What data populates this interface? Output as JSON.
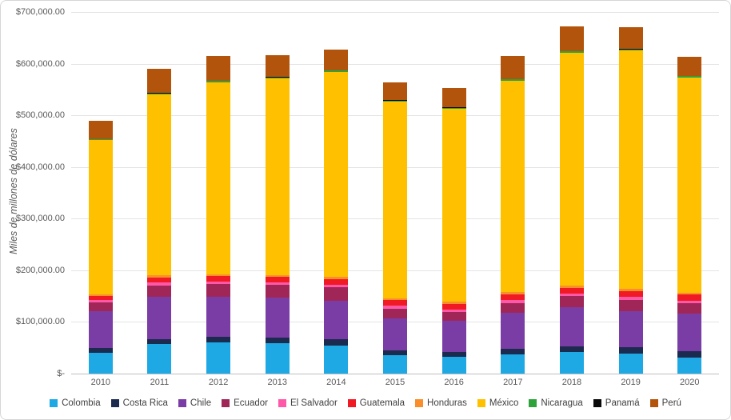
{
  "chart_data": {
    "type": "bar",
    "stacked": true,
    "title": "",
    "xlabel": "",
    "ylabel": "Miles de millones de dólares",
    "ylim": [
      0,
      700000
    ],
    "grid": true,
    "legend_position": "bottom",
    "y_ticks": [
      {
        "value": 700000,
        "label": "$700,000.00"
      },
      {
        "value": 600000,
        "label": "$600,000.00"
      },
      {
        "value": 500000,
        "label": "$500,000.00"
      },
      {
        "value": 400000,
        "label": "$400,000.00"
      },
      {
        "value": 300000,
        "label": "$300,000.00"
      },
      {
        "value": 200000,
        "label": "$200,000.00"
      },
      {
        "value": 100000,
        "label": "$100,000.00"
      },
      {
        "value": 0,
        "label": "$-"
      }
    ],
    "categories": [
      "2010",
      "2011",
      "2012",
      "2013",
      "2014",
      "2015",
      "2016",
      "2017",
      "2018",
      "2019",
      "2020"
    ],
    "series": [
      {
        "name": "Colombia",
        "color": "#1FA9E4",
        "values": [
          39700,
          56900,
          60100,
          58800,
          54800,
          35700,
          31800,
          37800,
          41800,
          39500,
          31000
        ]
      },
      {
        "name": "Costa Rica",
        "color": "#1B2A4F",
        "values": [
          9400,
          10400,
          11300,
          11500,
          11300,
          9600,
          10100,
          10800,
          11500,
          11600,
          11700
        ]
      },
      {
        "name": "Chile",
        "color": "#7A3DA5",
        "values": [
          71100,
          81400,
          77800,
          76400,
          74900,
          62000,
          60600,
          68800,
          74700,
          69700,
          73500
        ]
      },
      {
        "name": "Ecuador",
        "color": "#A02658",
        "values": [
          17500,
          22300,
          23800,
          24800,
          25700,
          18300,
          16800,
          19100,
          21600,
          22300,
          20200
        ]
      },
      {
        "name": "El Salvador",
        "color": "#FF58A8",
        "values": [
          4500,
          5300,
          5300,
          5500,
          5300,
          5500,
          5400,
          5800,
          5900,
          5900,
          5000
        ]
      },
      {
        "name": "Guatemala",
        "color": "#EF1A23",
        "values": [
          8500,
          10400,
          10000,
          10200,
          10800,
          10700,
          10400,
          11000,
          10800,
          11200,
          11600
        ]
      },
      {
        "name": "Honduras",
        "color": "#F98E2B",
        "values": [
          2700,
          3900,
          4400,
          3900,
          4000,
          3900,
          3800,
          4000,
          4300,
          4200,
          3800
        ]
      },
      {
        "name": "México",
        "color": "#FFC000",
        "values": [
          298500,
          349400,
          370800,
          380000,
          396900,
          380600,
          373900,
          409500,
          450600,
          460700,
          417000
        ]
      },
      {
        "name": "Nicaragua",
        "color": "#2EA33C",
        "values": [
          1900,
          2300,
          2700,
          2400,
          2600,
          2400,
          2200,
          2500,
          2600,
          2700,
          2500
        ]
      },
      {
        "name": "Panamá",
        "color": "#0A0A0A",
        "values": [
          700,
          800,
          800,
          800,
          800,
          700,
          600,
          700,
          700,
          700,
          700
        ]
      },
      {
        "name": "Perú",
        "color": "#B3540D",
        "values": [
          35800,
          46400,
          47400,
          42900,
          39500,
          34400,
          37000,
          45400,
          47000,
          42000,
          36000
        ]
      }
    ]
  }
}
